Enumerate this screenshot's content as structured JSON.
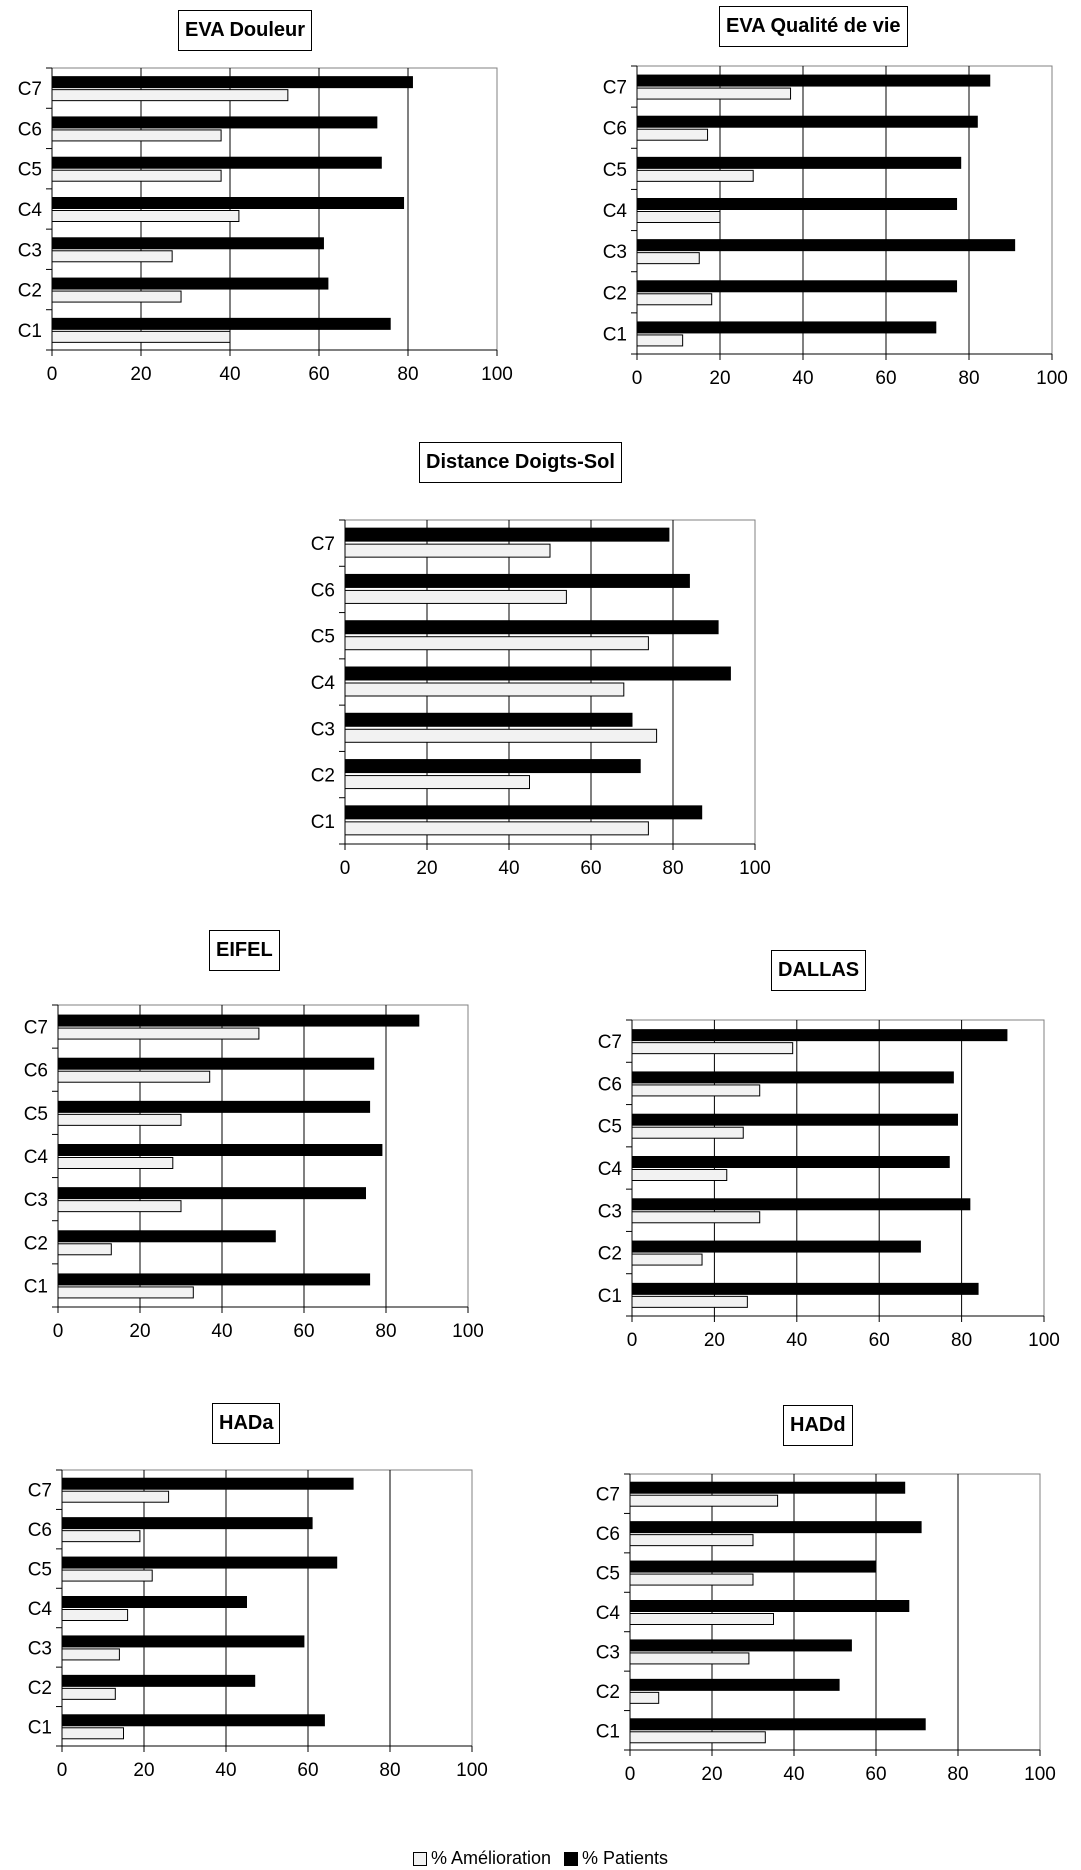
{
  "legend": {
    "improvement": "% Amélioration",
    "patients": "% Patients",
    "improvement_color": "#f2f2f2",
    "patients_color": "#000000"
  },
  "chart_data": [
    {
      "type": "bar",
      "orientation": "horizontal",
      "title": "EVA Douleur",
      "categories": [
        "C1",
        "C2",
        "C3",
        "C4",
        "C5",
        "C6",
        "C7"
      ],
      "xticks": [
        "0",
        "20",
        "40",
        "60",
        "80",
        "100"
      ],
      "xlim": [
        0,
        100
      ],
      "grid": true,
      "series": [
        {
          "name": "% Amélioration",
          "values": [
            40,
            29,
            27,
            42,
            38,
            38,
            53
          ]
        },
        {
          "name": "% Patients",
          "values": [
            76,
            62,
            61,
            79,
            74,
            73,
            81
          ]
        }
      ]
    },
    {
      "type": "bar",
      "orientation": "horizontal",
      "title": "EVA Qualité de vie",
      "categories": [
        "C1",
        "C2",
        "C3",
        "C4",
        "C5",
        "C6",
        "C7"
      ],
      "xticks": [
        "0",
        "20",
        "40",
        "60",
        "80",
        "100"
      ],
      "xlim": [
        0,
        100
      ],
      "grid": true,
      "series": [
        {
          "name": "% Amélioration",
          "values": [
            11,
            18,
            15,
            20,
            28,
            17,
            37
          ]
        },
        {
          "name": "% Patients",
          "values": [
            72,
            77,
            91,
            77,
            78,
            82,
            85
          ]
        }
      ]
    },
    {
      "type": "bar",
      "orientation": "horizontal",
      "title": "Distance Doigts-Sol",
      "categories": [
        "C1",
        "C2",
        "C3",
        "C4",
        "C5",
        "C6",
        "C7"
      ],
      "xticks": [
        "0",
        "20",
        "40",
        "60",
        "80",
        "100"
      ],
      "xlim": [
        0,
        100
      ],
      "grid": true,
      "series": [
        {
          "name": "% Amélioration",
          "values": [
            74,
            45,
            76,
            68,
            74,
            54,
            50
          ]
        },
        {
          "name": "% Patients",
          "values": [
            87,
            72,
            70,
            94,
            91,
            84,
            79
          ]
        }
      ]
    },
    {
      "type": "bar",
      "orientation": "horizontal",
      "title": "EIFEL",
      "categories": [
        "C1",
        "C2",
        "C3",
        "C4",
        "C5",
        "C6",
        "C7"
      ],
      "xticks": [
        "0",
        "20",
        "40",
        "60",
        "80",
        "100"
      ],
      "xlim": [
        0,
        100
      ],
      "grid": true,
      "series": [
        {
          "name": "% Amélioration",
          "values": [
            33,
            13,
            30,
            28,
            30,
            37,
            49
          ]
        },
        {
          "name": "% Patients",
          "values": [
            76,
            53,
            75,
            79,
            76,
            77,
            88
          ]
        }
      ]
    },
    {
      "type": "bar",
      "orientation": "horizontal",
      "title": "DALLAS",
      "categories": [
        "C1",
        "C2",
        "C3",
        "C4",
        "C5",
        "C6",
        "C7"
      ],
      "xticks": [
        "0",
        "20",
        "40",
        "60",
        "80",
        "100"
      ],
      "xlim": [
        0,
        100
      ],
      "grid": true,
      "series": [
        {
          "name": "% Amélioration",
          "values": [
            28,
            17,
            31,
            23,
            27,
            31,
            39
          ]
        },
        {
          "name": "% Patients",
          "values": [
            84,
            70,
            82,
            77,
            79,
            78,
            91
          ]
        }
      ]
    },
    {
      "type": "bar",
      "orientation": "horizontal",
      "title": "HADa",
      "categories": [
        "C1",
        "C2",
        "C3",
        "C4",
        "C5",
        "C6",
        "C7"
      ],
      "xticks": [
        "0",
        "20",
        "40",
        "60",
        "80",
        "100"
      ],
      "xlim": [
        0,
        100
      ],
      "grid": true,
      "series": [
        {
          "name": "% Amélioration",
          "values": [
            15,
            13,
            14,
            16,
            22,
            19,
            26
          ]
        },
        {
          "name": "% Patients",
          "values": [
            64,
            47,
            59,
            45,
            67,
            61,
            71
          ]
        }
      ]
    },
    {
      "type": "bar",
      "orientation": "horizontal",
      "title": "HADd",
      "categories": [
        "C1",
        "C2",
        "C3",
        "C4",
        "C5",
        "C6",
        "C7"
      ],
      "xticks": [
        "0",
        "20",
        "40",
        "60",
        "80",
        "100"
      ],
      "xlim": [
        0,
        100
      ],
      "grid": true,
      "series": [
        {
          "name": "% Amélioration",
          "values": [
            33,
            7,
            29,
            35,
            30,
            30,
            36
          ]
        },
        {
          "name": "% Patients",
          "values": [
            72,
            51,
            54,
            68,
            60,
            71,
            67
          ]
        }
      ]
    }
  ]
}
